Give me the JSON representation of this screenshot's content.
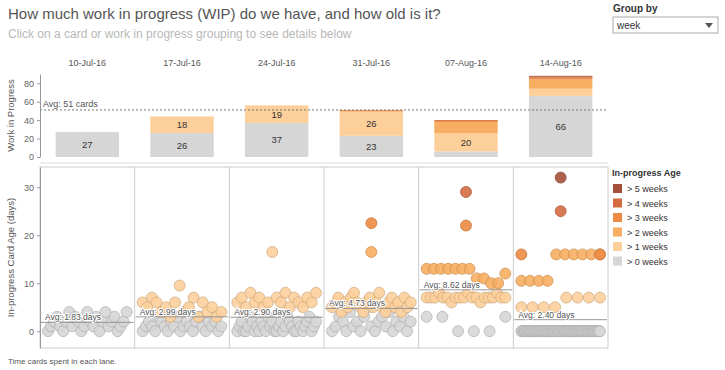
{
  "group_by": {
    "label": "Group by",
    "value": "week"
  },
  "chart_data": [
    {
      "type": "bar",
      "title": "How much work in progress (WIP) do we have, and how old is it?",
      "subtitle": "Click on a card or work in progress grouping to see details below",
      "y_label": "Work in Progress",
      "categories": [
        "10-Jul-16",
        "17-Jul-16",
        "24-Jul-16",
        "31-Jul-16",
        "07-Aug-16",
        "14-Aug-16"
      ],
      "series": [
        {
          "name": "> 0 weeks",
          "color": "#d6d6d6",
          "values": [
            27,
            26,
            37,
            23,
            6,
            66
          ],
          "value_labels": [
            "27",
            "26",
            "37",
            "23",
            null,
            "66"
          ]
        },
        {
          "name": "> 1 weeks",
          "color": "#fdcf9b",
          "values": [
            0,
            18,
            19,
            26,
            20,
            8
          ],
          "value_labels": [
            null,
            "18",
            "19",
            "26",
            "20",
            null
          ]
        },
        {
          "name": "> 2 weeks",
          "color": "#f8ae62",
          "values": [
            0,
            0,
            0,
            1,
            12,
            10
          ]
        },
        {
          "name": "> 3 weeks",
          "color": "#ee8b42",
          "values": [
            0,
            0,
            0,
            1,
            1,
            2
          ]
        },
        {
          "name": "> 4 weeks",
          "color": "#d46b40",
          "values": [
            0,
            0,
            0,
            0,
            1,
            1
          ]
        },
        {
          "name": "> 5 weeks",
          "color": "#a5503a",
          "values": [
            0,
            0,
            0,
            0,
            0,
            1
          ]
        }
      ],
      "stacked": true,
      "data_labels": true,
      "ylim": [
        0,
        90
      ],
      "yticks": [
        0,
        20,
        40,
        60,
        80
      ],
      "grid": false,
      "average": 51,
      "average_label": "Avg: 51 cards",
      "legend": "right",
      "legend_title": "In-progress Age"
    },
    {
      "type": "scatter",
      "y_label": "In-progress Card Age (days)",
      "ylim": [
        -3.5,
        34.2
      ],
      "yticks": [
        0,
        10,
        20,
        30
      ],
      "grid": false,
      "series": [
        {
          "values": [
            [
              0,
              1,
              2,
              3,
              1,
              0,
              2,
              4,
              1,
              3,
              2,
              0,
              1,
              4,
              2,
              1,
              3,
              0,
              2,
              4,
              1,
              2,
              3,
              0,
              1,
              2,
              4
            ],
            [
              0,
              1,
              2,
              1,
              0,
              3,
              2,
              1,
              0,
              2,
              1,
              3,
              0,
              1,
              2,
              1,
              0,
              2,
              3,
              1,
              0,
              2,
              1,
              2,
              0,
              1
            ],
            [
              0,
              1,
              2,
              0,
              0,
              1,
              3,
              2,
              0,
              1,
              0,
              2,
              1,
              0,
              3,
              1,
              2,
              0,
              0,
              1,
              2,
              0,
              1,
              3,
              2,
              1,
              0,
              0,
              2,
              1,
              0,
              1,
              2,
              3,
              0,
              1,
              2
            ],
            [
              0,
              1,
              3,
              2,
              0,
              4,
              1,
              2,
              0,
              3,
              5,
              1,
              0,
              2,
              3,
              1,
              4,
              0,
              2,
              1,
              3,
              0,
              2
            ],
            [
              3,
              3,
              0,
              0,
              0,
              3
            ],
            [
              0,
              0,
              0,
              0,
              0,
              0,
              0,
              0,
              0,
              0,
              0,
              0,
              0,
              0,
              0,
              0,
              0,
              0,
              0,
              0,
              0,
              0,
              0,
              0,
              0,
              0,
              0,
              0,
              0,
              0,
              0,
              0,
              0,
              0,
              0,
              0,
              0,
              0,
              0,
              0,
              0,
              0,
              0,
              0,
              0,
              0,
              0,
              0,
              0,
              0,
              0,
              0,
              0,
              0,
              0,
              0,
              0,
              0,
              0,
              0,
              0,
              0,
              0,
              0,
              0,
              0
            ]
          ]
        },
        {
          "values": [
            [],
            [
              6,
              5,
              7,
              6,
              4,
              5,
              3,
              6,
              9.5,
              4,
              5,
              7,
              3,
              6,
              4,
              5,
              3,
              4
            ],
            [
              6,
              7,
              5,
              8,
              6,
              7,
              5,
              6,
              16.5,
              7,
              6,
              8,
              5,
              7,
              6,
              5,
              7,
              6,
              8
            ],
            [
              5,
              6,
              7,
              4,
              6,
              5,
              7,
              8,
              6,
              5,
              4,
              6,
              7,
              5,
              6,
              8,
              5,
              4,
              6,
              7,
              5,
              6,
              4,
              7,
              5,
              6
            ],
            [
              7,
              7,
              7,
              8,
              7,
              7,
              6,
              7,
              7,
              7,
              8,
              7,
              7,
              6,
              7,
              7,
              7,
              8,
              7,
              7
            ],
            [
              5,
              5,
              5,
              5,
              7,
              7,
              7,
              7
            ]
          ]
        },
        {
          "values": [
            [],
            [],
            [],
            [
              16.5
            ],
            [
              13,
              13,
              13,
              13,
              13,
              13,
              13,
              11,
              11,
              10,
              10,
              12
            ],
            [
              10.5,
              10.5,
              10.5,
              10.5,
              16,
              16,
              16,
              16,
              16,
              16
            ]
          ]
        },
        {
          "values": [
            [],
            [],
            [],
            [
              22.5
            ],
            [
              22
            ],
            [
              16,
              16
            ]
          ]
        },
        {
          "values": [
            [],
            [],
            [],
            [],
            [
              29
            ],
            [
              25
            ]
          ]
        },
        {
          "values": [
            [],
            [],
            [],
            [],
            [],
            [
              32
            ]
          ]
        }
      ],
      "averages": [
        1.83,
        2.99,
        2.9,
        4.73,
        8.62,
        2.4
      ],
      "average_labels": [
        "Avg: 1.83 days",
        "Avg: 2.99 days",
        "Avg: 2.90 days",
        "Avg: 4.73 days",
        "Avg: 8.62 days",
        "Avg: 2.40 days"
      ],
      "footnote": "Time cards spent in each lane."
    }
  ]
}
